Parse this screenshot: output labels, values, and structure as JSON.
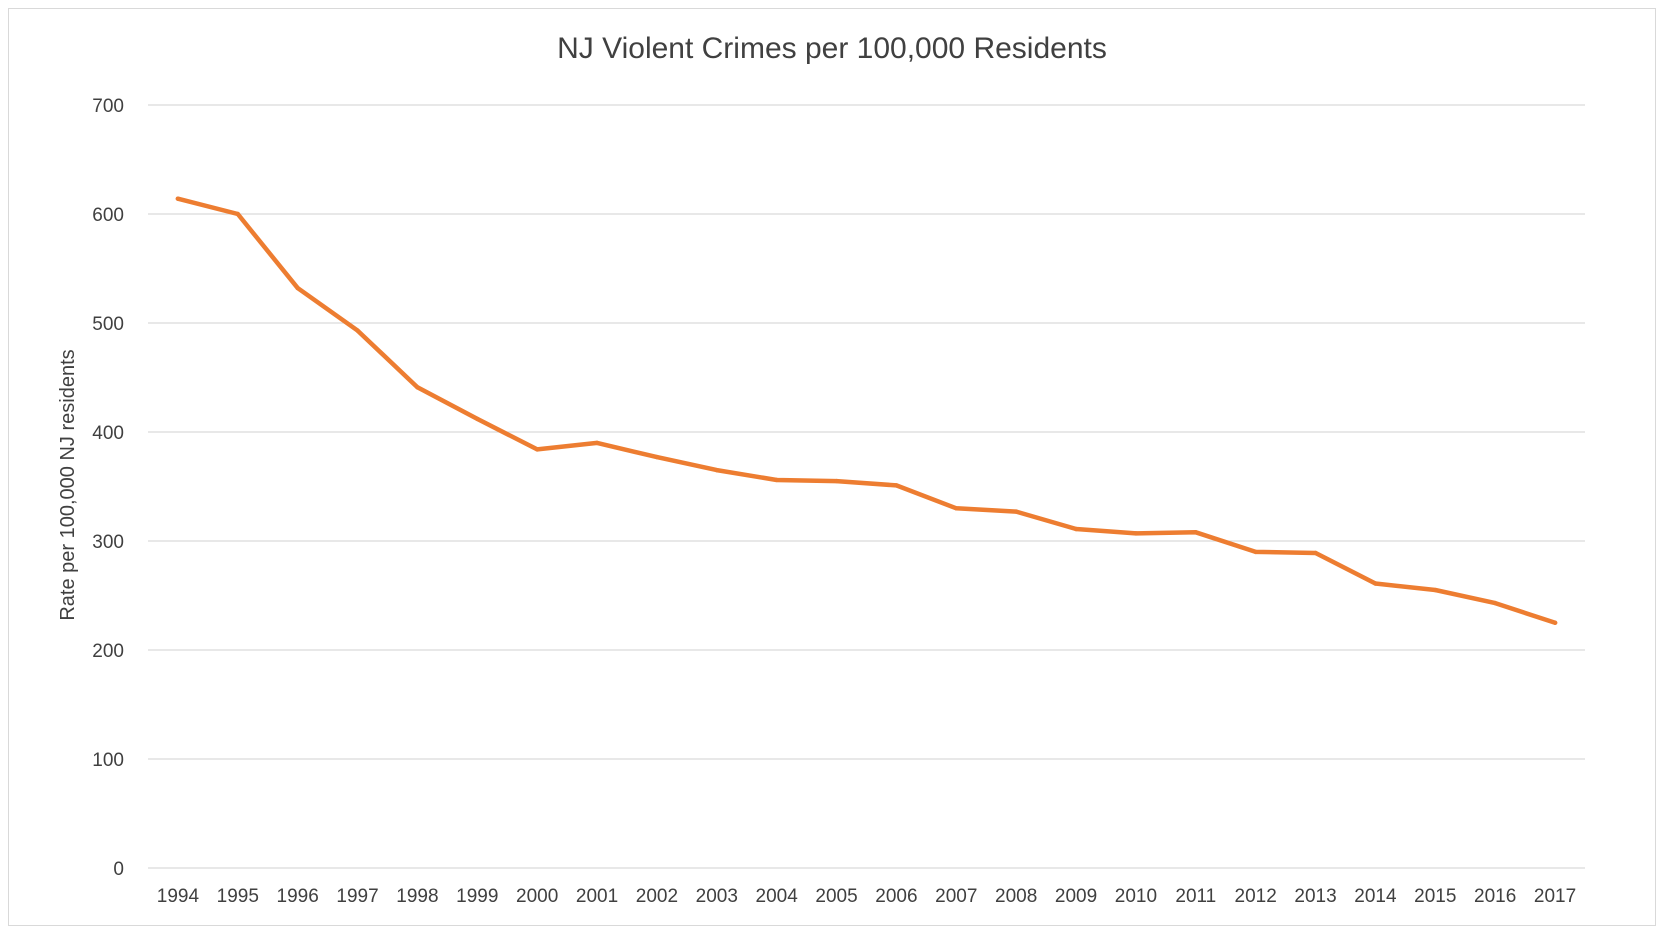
{
  "chart_data": {
    "type": "line",
    "title": "NJ Violent Crimes per 100,000 Residents",
    "xlabel": "",
    "ylabel": "Rate per 100,000 NJ residents",
    "ylim": [
      0,
      700
    ],
    "yticks": [
      0,
      100,
      200,
      300,
      400,
      500,
      600,
      700
    ],
    "grid": true,
    "legend": "none",
    "categories": [
      "1994",
      "1995",
      "1996",
      "1997",
      "1998",
      "1999",
      "2000",
      "2001",
      "2002",
      "2003",
      "2004",
      "2005",
      "2006",
      "2007",
      "2008",
      "2009",
      "2010",
      "2011",
      "2012",
      "2013",
      "2014",
      "2015",
      "2016",
      "2017"
    ],
    "series": [
      {
        "color": "#ed7d31",
        "values": [
          614,
          600,
          532,
          493,
          441,
          412,
          384,
          390,
          377,
          365,
          356,
          355,
          351,
          330,
          327,
          311,
          307,
          308,
          290,
          289,
          261,
          255,
          243,
          225
        ]
      }
    ]
  },
  "colors": {
    "gridline": "#d9d9d9",
    "text": "#404040",
    "frame": "#d9d9d9"
  }
}
